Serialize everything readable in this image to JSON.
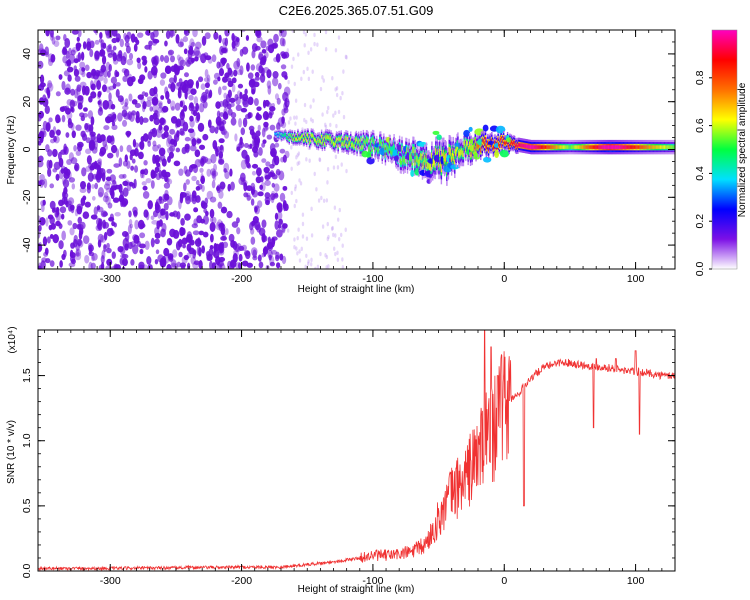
{
  "title": "C2E6.2025.365.07.51.G09",
  "colors": {
    "snr_line": "#f03232",
    "low_amplitude": "#6a0fd8",
    "colorbar_stops": [
      "#ffffff",
      "#7c10e6",
      "#0000ff",
      "#00e0ff",
      "#00ff40",
      "#ffff00",
      "#ff7000",
      "#ff0000",
      "#ff00c0"
    ]
  },
  "chart_data": [
    {
      "type": "heatmap",
      "xlabel": "Height of straight line (km)",
      "ylabel": "Frequency (Hz)",
      "xlim": [
        -355,
        130
      ],
      "ylim": [
        -50,
        50
      ],
      "xticks": [
        -300,
        -200,
        -100,
        0,
        100
      ],
      "xtick_labels": [
        "-300",
        "-200",
        "-100",
        "0",
        "100"
      ],
      "yticks": [
        -40,
        -20,
        0,
        20,
        40
      ],
      "ytick_labels": [
        "-40",
        "-20",
        "0",
        "20",
        "40"
      ],
      "grid": false,
      "colorbar": {
        "label": "Normalized spectral amplitude",
        "range": [
          0,
          1
        ],
        "ticks": [
          0.0,
          0.2,
          0.4,
          0.6,
          0.8
        ],
        "tick_labels": [
          "0.0",
          "0.2",
          "0.4",
          "0.6",
          "0.8"
        ],
        "placement": "right"
      },
      "signal_band": {
        "x": [
          -175,
          -160,
          -140,
          -120,
          -100,
          -80,
          -60,
          -45,
          -30,
          -15,
          0,
          20,
          50,
          80,
          110,
          130
        ],
        "center_freq": [
          6,
          5,
          4,
          3,
          2,
          -2,
          -4,
          -5,
          0,
          2,
          3,
          1,
          1,
          1,
          1,
          1
        ],
        "width": [
          3,
          5,
          6,
          7,
          8,
          10,
          12,
          14,
          10,
          8,
          6,
          6,
          6,
          6,
          6,
          6
        ],
        "peak_amplitude": [
          0.3,
          0.5,
          0.5,
          0.5,
          0.45,
          0.45,
          0.5,
          0.55,
          0.5,
          0.7,
          0.7,
          0.85,
          0.45,
          0.9,
          0.6,
          0.45
        ]
      },
      "noise_region": {
        "x_range": [
          -355,
          -165
        ],
        "typical_amplitude": 0.15
      }
    },
    {
      "type": "line",
      "xlabel": "Height of straight line (km)",
      "ylabel": "SNR (10 * v/v)",
      "y_multiplier": "(x10⁴)",
      "xlim": [
        -355,
        130
      ],
      "ylim": [
        0,
        1.85
      ],
      "xticks": [
        -300,
        -200,
        -100,
        0,
        100
      ],
      "xtick_labels": [
        "-300",
        "-200",
        "-100",
        "0",
        "100"
      ],
      "yticks": [
        0.0,
        0.5,
        1.0,
        1.5
      ],
      "ytick_labels": [
        "0.0",
        "0.5",
        "1.0",
        "1.5"
      ],
      "grid": false,
      "series": [
        {
          "x": [
            -355,
            -300,
            -250,
            -200,
            -170,
            -150,
            -130,
            -110,
            -100,
            -90,
            -80,
            -70,
            -60,
            -55,
            -50,
            -45,
            -40,
            -35,
            -30,
            -25,
            -20,
            -15,
            -10,
            -5,
            0,
            5,
            10,
            15,
            20,
            25,
            30,
            40,
            50,
            60,
            70,
            80,
            90,
            100,
            110,
            120,
            130
          ],
          "y": [
            0.02,
            0.02,
            0.025,
            0.03,
            0.03,
            0.05,
            0.07,
            0.1,
            0.12,
            0.12,
            0.13,
            0.15,
            0.2,
            0.3,
            0.4,
            0.5,
            0.6,
            0.65,
            0.7,
            0.8,
            0.9,
            1.0,
            1.05,
            1.15,
            1.25,
            1.32,
            1.35,
            1.42,
            1.48,
            1.52,
            1.56,
            1.6,
            1.6,
            1.58,
            1.57,
            1.56,
            1.54,
            1.53,
            1.52,
            1.5,
            1.5
          ]
        }
      ],
      "spikes": [
        {
          "x": -15,
          "y": 1.85
        },
        {
          "x": -10,
          "y": 1.72
        },
        {
          "x": -5,
          "y": 1.5
        },
        {
          "x": 15,
          "y": 0.5
        },
        {
          "x": 70,
          "y": 1.63
        },
        {
          "x": 85,
          "y": 1.63
        },
        {
          "x": 100,
          "y": 1.69
        },
        {
          "x": 103,
          "y": 1.05
        },
        {
          "x": 68,
          "y": 1.1
        }
      ]
    }
  ]
}
